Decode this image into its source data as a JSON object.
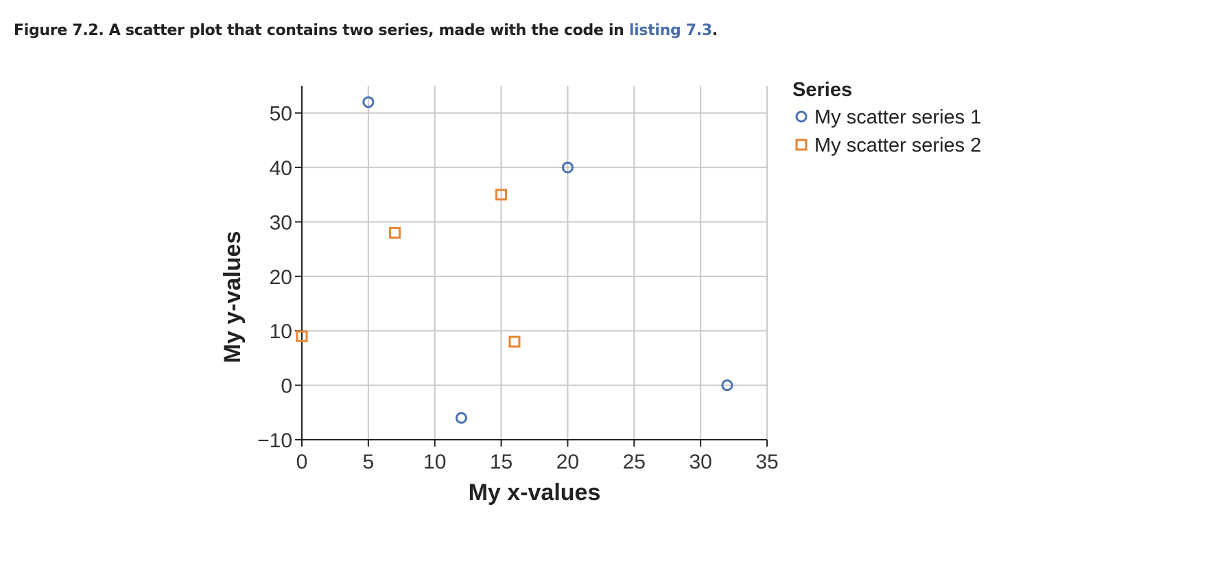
{
  "caption": {
    "text": "Figure 7.2. A scatter plot that contains two series, made with the code in ",
    "link_text": "listing 7.3",
    "suffix": "."
  },
  "chart_data": {
    "type": "scatter",
    "xlabel": "My x-values",
    "ylabel": "My y-values",
    "xlim": [
      0,
      35
    ],
    "ylim": [
      -10,
      55
    ],
    "x_ticks": [
      0,
      5,
      10,
      15,
      20,
      25,
      30,
      35
    ],
    "y_ticks": [
      -10,
      0,
      10,
      20,
      30,
      40,
      50
    ],
    "y_tick_labels": [
      "−10",
      "0",
      "10",
      "20",
      "30",
      "40",
      "50"
    ],
    "grid": true,
    "legend": {
      "title": "Series",
      "placement": "right"
    },
    "series": [
      {
        "name": "My scatter series 1",
        "marker": "circle",
        "color": "#4a72b0",
        "points": [
          {
            "x": 5,
            "y": 52
          },
          {
            "x": 12,
            "y": -6
          },
          {
            "x": 20,
            "y": 40
          },
          {
            "x": 32,
            "y": 0
          }
        ]
      },
      {
        "name": "My scatter series 2",
        "marker": "square",
        "color": "#e6852f",
        "points": [
          {
            "x": 0,
            "y": 9
          },
          {
            "x": 7,
            "y": 28
          },
          {
            "x": 15,
            "y": 35
          },
          {
            "x": 16,
            "y": 8
          }
        ]
      }
    ]
  }
}
